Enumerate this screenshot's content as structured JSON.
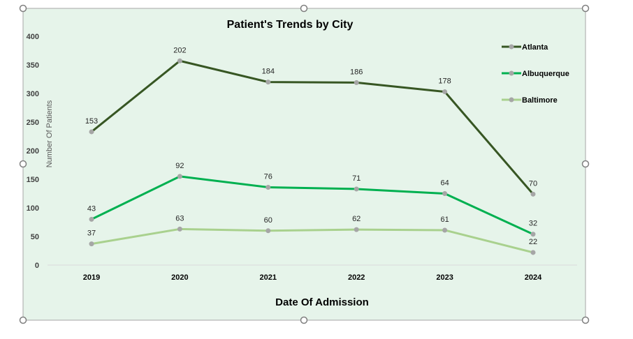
{
  "chart_data": {
    "type": "line",
    "title": "Patient's Trends by City",
    "xlabel": "Date Of Admission",
    "ylabel": "Number Of Patients",
    "categories": [
      "2019",
      "2020",
      "2021",
      "2022",
      "2023",
      "2024"
    ],
    "ylim": [
      0,
      400
    ],
    "yticks": [
      0,
      50,
      100,
      150,
      200,
      250,
      300,
      350,
      400
    ],
    "grid": false,
    "legend": "top-right",
    "series": [
      {
        "name": "Atlanta",
        "color": "#375623",
        "values": [
          233,
          357,
          320,
          319,
          303,
          124
        ],
        "labels": [
          "153",
          "202",
          "184",
          "186",
          "178",
          "70"
        ]
      },
      {
        "name": "Albuquerque",
        "color": "#00b050",
        "values": [
          80,
          155,
          136,
          133,
          125,
          54
        ],
        "labels": [
          "43",
          "92",
          "76",
          "71",
          "64",
          "32"
        ]
      },
      {
        "name": "Baltimore",
        "color": "#a9d18e",
        "values": [
          37,
          63,
          60,
          62,
          61,
          22
        ],
        "labels": [
          "37",
          "63",
          "60",
          "62",
          "61",
          "22"
        ]
      }
    ],
    "marker_color": "#a6a6a6"
  }
}
